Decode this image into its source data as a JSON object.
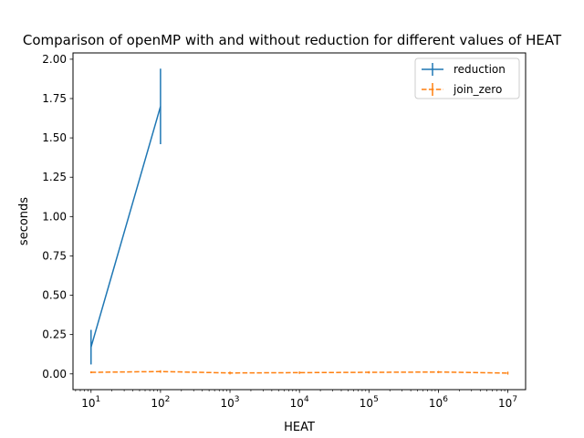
{
  "chart_data": {
    "type": "line",
    "title": "Comparison of openMP with and without reduction for different values of HEAT",
    "xlabel": "HEAT",
    "ylabel": "seconds",
    "xscale": "log",
    "xlim": [
      5.5,
      18000000
    ],
    "ylim": [
      -0.1,
      2.04
    ],
    "x_ticks": [
      {
        "value": 10,
        "mantissa": "10",
        "exp": "1"
      },
      {
        "value": 100,
        "mantissa": "10",
        "exp": "2"
      },
      {
        "value": 1000,
        "mantissa": "10",
        "exp": "3"
      },
      {
        "value": 10000,
        "mantissa": "10",
        "exp": "4"
      },
      {
        "value": 100000,
        "mantissa": "10",
        "exp": "5"
      },
      {
        "value": 1000000,
        "mantissa": "10",
        "exp": "6"
      },
      {
        "value": 10000000,
        "mantissa": "10",
        "exp": "7"
      }
    ],
    "y_ticks": [
      {
        "value": 0.0,
        "label": "0.00"
      },
      {
        "value": 0.25,
        "label": "0.25"
      },
      {
        "value": 0.5,
        "label": "0.50"
      },
      {
        "value": 0.75,
        "label": "0.75"
      },
      {
        "value": 1.0,
        "label": "1.00"
      },
      {
        "value": 1.25,
        "label": "1.25"
      },
      {
        "value": 1.5,
        "label": "1.50"
      },
      {
        "value": 1.75,
        "label": "1.75"
      },
      {
        "value": 2.0,
        "label": "2.00"
      }
    ],
    "grid": false,
    "legend": "top-right",
    "series": [
      {
        "name": "reduction",
        "color": "#1f77b4",
        "linestyle": "solid",
        "x": [
          10,
          100
        ],
        "y": [
          0.17,
          1.7
        ],
        "yerr": [
          0.11,
          0.24
        ]
      },
      {
        "name": "join_zero",
        "color": "#ff7f0e",
        "linestyle": "dashed",
        "x": [
          10,
          100,
          1000,
          10000,
          100000,
          1000000,
          10000000
        ],
        "y": [
          0.01,
          0.015,
          0.006,
          0.008,
          0.01,
          0.012,
          0.005
        ],
        "yerr": [
          0.006,
          0.008,
          0.002,
          0.003,
          0.004,
          0.005,
          0.002
        ]
      }
    ]
  }
}
